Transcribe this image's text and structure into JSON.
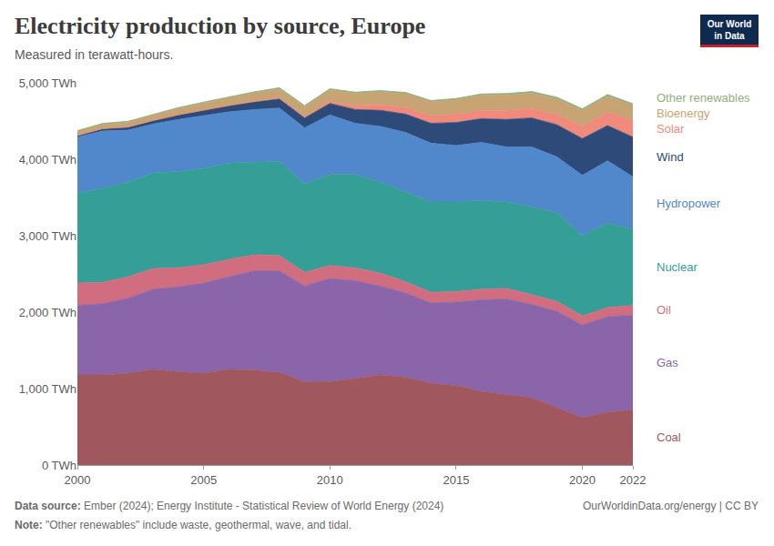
{
  "chart_data": {
    "type": "area",
    "stacked": true,
    "grid": true,
    "title": "Electricity production by source, Europe",
    "subtitle": "Measured in terawatt-hours.",
    "source": {
      "label": "Data source:",
      "text": "Ember (2024); Energy Institute - Statistical Review of World Energy (2024)"
    },
    "credit": "OurWorldinData.org/energy | CC BY",
    "note": {
      "label": "Note:",
      "text": "\"Other renewables\" include waste, geothermal, wave, and tidal."
    },
    "logo": [
      "Our World",
      "in Data"
    ],
    "x": [
      2000,
      2001,
      2002,
      2003,
      2004,
      2005,
      2006,
      2007,
      2008,
      2009,
      2010,
      2011,
      2012,
      2013,
      2014,
      2015,
      2016,
      2017,
      2018,
      2019,
      2020,
      2021,
      2022
    ],
    "xlim": [
      2000,
      2022
    ],
    "xticks": [
      2000,
      2005,
      2010,
      2015,
      2020,
      2022
    ],
    "ylim": [
      0,
      5000
    ],
    "yticks": [
      {
        "value": 0,
        "label": "0 TWh"
      },
      {
        "value": 1000,
        "label": "1,000 TWh"
      },
      {
        "value": 2000,
        "label": "2,000 TWh"
      },
      {
        "value": 3000,
        "label": "3,000 TWh"
      },
      {
        "value": 4000,
        "label": "4,000 TWh"
      },
      {
        "value": 5000,
        "label": "5,000 TWh"
      }
    ],
    "series": [
      {
        "name": "Coal",
        "color": "#a0585e",
        "values": [
          1180,
          1180,
          1200,
          1250,
          1220,
          1200,
          1250,
          1240,
          1210,
          1090,
          1090,
          1130,
          1180,
          1150,
          1070,
          1040,
          960,
          920,
          880,
          750,
          620,
          690,
          720
        ]
      },
      {
        "name": "Gas",
        "color": "#8b65aa",
        "values": [
          910,
          930,
          980,
          1050,
          1110,
          1180,
          1210,
          1300,
          1330,
          1250,
          1350,
          1280,
          1160,
          1100,
          1050,
          1090,
          1200,
          1250,
          1220,
          1260,
          1210,
          1250,
          1240
        ]
      },
      {
        "name": "Oil",
        "color": "#d06e80",
        "values": [
          290,
          280,
          280,
          270,
          250,
          240,
          230,
          210,
          200,
          180,
          170,
          170,
          170,
          150,
          140,
          140,
          140,
          140,
          130,
          130,
          120,
          120,
          130
        ]
      },
      {
        "name": "Nuclear",
        "color": "#349e97",
        "values": [
          1180,
          1230,
          1240,
          1250,
          1260,
          1260,
          1260,
          1210,
          1230,
          1160,
          1190,
          1220,
          1190,
          1170,
          1180,
          1170,
          1160,
          1130,
          1150,
          1160,
          1050,
          1110,
          990
        ]
      },
      {
        "name": "Hydropower",
        "color": "#5187cb",
        "values": [
          730,
          750,
          680,
          640,
          680,
          690,
          670,
          690,
          700,
          730,
          780,
          670,
          730,
          780,
          770,
          740,
          760,
          720,
          780,
          730,
          790,
          810,
          690
        ]
      },
      {
        "name": "Wind",
        "color": "#2e4a78",
        "values": [
          20,
          30,
          40,
          45,
          60,
          70,
          80,
          100,
          120,
          130,
          150,
          180,
          210,
          240,
          260,
          300,
          310,
          360,
          380,
          420,
          480,
          460,
          520
        ]
      },
      {
        "name": "Solar",
        "color": "#ef8a7c",
        "values": [
          0,
          0,
          1,
          1,
          1,
          2,
          3,
          5,
          10,
          15,
          25,
          50,
          70,
          85,
          95,
          105,
          110,
          120,
          125,
          135,
          160,
          175,
          215
        ]
      },
      {
        "name": "Bioenergy",
        "color": "#c8a474",
        "values": [
          50,
          55,
          60,
          70,
          80,
          90,
          100,
          110,
          120,
          130,
          150,
          160,
          170,
          180,
          185,
          190,
          195,
          200,
          200,
          205,
          210,
          210,
          200
        ]
      },
      {
        "name": "Other renewables",
        "color": "#8fb07a",
        "values": [
          15,
          15,
          15,
          15,
          16,
          16,
          16,
          17,
          17,
          17,
          18,
          18,
          18,
          19,
          19,
          20,
          20,
          20,
          21,
          21,
          21,
          22,
          22
        ]
      }
    ]
  }
}
